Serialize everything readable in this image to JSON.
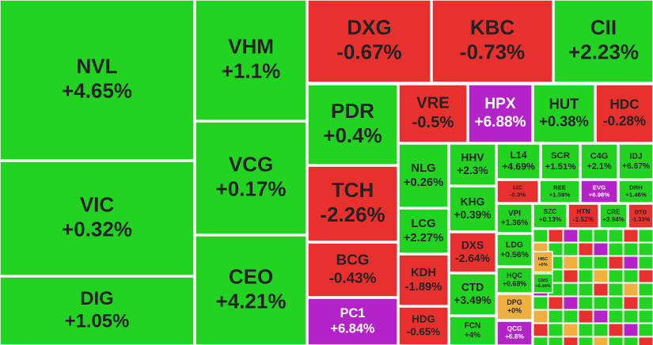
{
  "chart_data": {
    "type": "treemap",
    "categories": [
      "NVL",
      "VIC",
      "DIG",
      "VHM",
      "VCG",
      "CEO",
      "DXG",
      "KBC",
      "CII",
      "PDR",
      "TCH",
      "BCG",
      "PC1",
      "VRE",
      "HPX",
      "HUT",
      "HDC",
      "NLG",
      "LCG",
      "KDH",
      "HDG",
      "HHV",
      "KHG",
      "DXS",
      "CTD",
      "FCN",
      "L14",
      "SCR",
      "C4G",
      "IDJ",
      "IJC",
      "REE",
      "EVG",
      "DRH",
      "VPI",
      "SZC",
      "HTN",
      "CRE",
      "DTD",
      "LDG",
      "HQC",
      "DPG",
      "QCG",
      "HBC",
      "CMS"
    ],
    "values": [
      4.65,
      0.32,
      1.05,
      1.1,
      0.17,
      4.21,
      -0.67,
      -0.73,
      2.23,
      0.4,
      -2.26,
      -0.43,
      6.84,
      -0.5,
      6.88,
      0.38,
      -0.28,
      0.26,
      2.27,
      -1.89,
      -0.65,
      2.3,
      0.39,
      -2.64,
      3.49,
      4,
      4.69,
      1.51,
      2.1,
      6.67,
      -0.3,
      1.59,
      6.98,
      1.46,
      1.36,
      0.13,
      -1.52,
      3.94,
      -1.33,
      0.56,
      0.68,
      0,
      6.8,
      0,
      6.49
    ],
    "value_labels": [
      "+4.65%",
      "+0.32%",
      "+1.05%",
      "+1.1%",
      "+0.17%",
      "+4.21%",
      "-0.67%",
      "-0.73%",
      "+2.23%",
      "+0.4%",
      "-2.26%",
      "-0.43%",
      "+6.84%",
      "-0.5%",
      "+6.88%",
      "+0.38%",
      "-0.28%",
      "+0.26%",
      "+2.27%",
      "-1.89%",
      "-0.65%",
      "+2.3%",
      "+0.39%",
      "-2.64%",
      "+3.49%",
      "+4%",
      "+4.69%",
      "+1.51%",
      "+2.1%",
      "+6.67%",
      "-0.3%",
      "+1.59%",
      "+6.98%",
      "+1.46%",
      "+1.36%",
      "+0.13%",
      "-1.52%",
      "+3.94%",
      "-1.33%",
      "+0.56%",
      "+0.68%",
      "+0%",
      "+6.8%",
      "+0%",
      "+6.49%"
    ],
    "colors": {
      "up": "#22d322",
      "down": "#e8302e",
      "ceiling": "#b324c8",
      "flat": "#f0b040"
    }
  }
}
